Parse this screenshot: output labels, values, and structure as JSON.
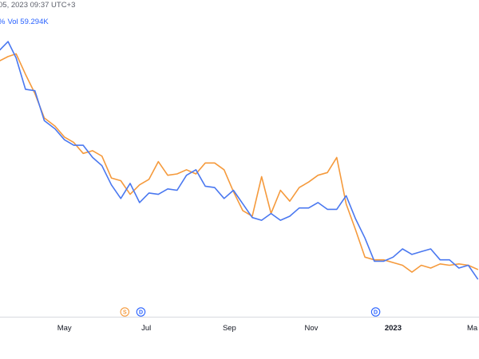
{
  "header": {
    "date_fragment": "05, 2023 09:37 UTC+3",
    "pct_fragment": "%",
    "volume": "Vol 59.294K"
  },
  "colors": {
    "series_orange": "#f59a3c",
    "series_blue": "#4a78f0",
    "axis_line": "#d8dae0",
    "marker_blue": "#2962ff"
  },
  "markers": [
    {
      "symbol": "S",
      "color": "#f59a3c",
      "x_date": "2022-06-15"
    },
    {
      "symbol": "D",
      "color": "#2962ff",
      "x_date": "2022-06-27"
    },
    {
      "symbol": "D",
      "color": "#2962ff",
      "x_date": "2022-12-19"
    }
  ],
  "chart_data": {
    "type": "line",
    "x_labels": [
      {
        "text": "May",
        "date": "2022-05-01"
      },
      {
        "text": "Jul",
        "date": "2022-07-01"
      },
      {
        "text": "Sep",
        "date": "2022-09-01"
      },
      {
        "text": "Nov",
        "date": "2022-11-01"
      },
      {
        "text": "2023",
        "date": "2023-01-01",
        "bold": true
      },
      {
        "text": "Ma",
        "date": "2023-03-01"
      }
    ],
    "x_range": [
      "2022-03-14",
      "2023-03-06"
    ],
    "y_range": [
      0,
      100
    ],
    "grid": false,
    "series": [
      {
        "color": "#f59a3c",
        "points": [
          [
            "2022-03-14",
            88
          ],
          [
            "2022-03-20",
            89.5
          ],
          [
            "2022-03-26",
            90.5
          ],
          [
            "2022-04-02",
            83
          ],
          [
            "2022-04-09",
            76
          ],
          [
            "2022-04-16",
            67
          ],
          [
            "2022-04-24",
            64
          ],
          [
            "2022-05-01",
            60
          ],
          [
            "2022-05-08",
            58
          ],
          [
            "2022-05-15",
            54
          ],
          [
            "2022-05-22",
            55
          ],
          [
            "2022-05-29",
            53
          ],
          [
            "2022-06-05",
            45
          ],
          [
            "2022-06-12",
            44
          ],
          [
            "2022-06-19",
            39
          ],
          [
            "2022-06-26",
            42.5
          ],
          [
            "2022-07-03",
            44.5
          ],
          [
            "2022-07-10",
            51
          ],
          [
            "2022-07-17",
            46
          ],
          [
            "2022-07-24",
            46.5
          ],
          [
            "2022-07-31",
            48
          ],
          [
            "2022-08-07",
            46.5
          ],
          [
            "2022-08-14",
            50.5
          ],
          [
            "2022-08-21",
            50.5
          ],
          [
            "2022-08-28",
            48
          ],
          [
            "2022-09-04",
            40
          ],
          [
            "2022-09-11",
            33
          ],
          [
            "2022-09-18",
            31
          ],
          [
            "2022-09-25",
            45.5
          ],
          [
            "2022-10-02",
            32
          ],
          [
            "2022-10-09",
            40.5
          ],
          [
            "2022-10-16",
            36.5
          ],
          [
            "2022-10-23",
            41.5
          ],
          [
            "2022-10-30",
            43.5
          ],
          [
            "2022-11-06",
            46
          ],
          [
            "2022-11-13",
            47
          ],
          [
            "2022-11-20",
            52.5
          ],
          [
            "2022-11-27",
            35.5
          ],
          [
            "2022-12-04",
            26
          ],
          [
            "2022-12-11",
            16
          ],
          [
            "2022-12-18",
            15
          ],
          [
            "2022-12-25",
            15
          ],
          [
            "2023-01-01",
            14
          ],
          [
            "2023-01-08",
            13
          ],
          [
            "2023-01-15",
            10.5
          ],
          [
            "2023-01-22",
            13
          ],
          [
            "2023-01-29",
            12
          ],
          [
            "2023-02-05",
            13.5
          ],
          [
            "2023-02-12",
            13
          ],
          [
            "2023-02-19",
            13.5
          ],
          [
            "2023-02-26",
            13
          ],
          [
            "2023-03-05",
            11.5
          ]
        ]
      },
      {
        "color": "#4a78f0",
        "points": [
          [
            "2022-03-14",
            92
          ],
          [
            "2022-03-20",
            95
          ],
          [
            "2022-03-26",
            89
          ],
          [
            "2022-04-02",
            77.5
          ],
          [
            "2022-04-09",
            77
          ],
          [
            "2022-04-16",
            66
          ],
          [
            "2022-04-24",
            63
          ],
          [
            "2022-05-01",
            59
          ],
          [
            "2022-05-08",
            57
          ],
          [
            "2022-05-15",
            57
          ],
          [
            "2022-05-22",
            52.5
          ],
          [
            "2022-05-29",
            49.5
          ],
          [
            "2022-06-05",
            42.5
          ],
          [
            "2022-06-12",
            37.5
          ],
          [
            "2022-06-19",
            43
          ],
          [
            "2022-06-26",
            36
          ],
          [
            "2022-07-03",
            39.5
          ],
          [
            "2022-07-10",
            39
          ],
          [
            "2022-07-17",
            41
          ],
          [
            "2022-07-24",
            40.5
          ],
          [
            "2022-07-31",
            46
          ],
          [
            "2022-08-07",
            48
          ],
          [
            "2022-08-14",
            42
          ],
          [
            "2022-08-21",
            41.5
          ],
          [
            "2022-08-28",
            37.5
          ],
          [
            "2022-09-04",
            40.5
          ],
          [
            "2022-09-11",
            35.5
          ],
          [
            "2022-09-18",
            30.5
          ],
          [
            "2022-09-25",
            29.5
          ],
          [
            "2022-10-02",
            32
          ],
          [
            "2022-10-09",
            29.5
          ],
          [
            "2022-10-16",
            31
          ],
          [
            "2022-10-23",
            34
          ],
          [
            "2022-10-30",
            34
          ],
          [
            "2022-11-06",
            36
          ],
          [
            "2022-11-13",
            33.5
          ],
          [
            "2022-11-20",
            33.5
          ],
          [
            "2022-11-27",
            38.5
          ],
          [
            "2022-12-04",
            30
          ],
          [
            "2022-12-11",
            23
          ],
          [
            "2022-12-18",
            14.5
          ],
          [
            "2022-12-25",
            14.5
          ],
          [
            "2023-01-01",
            16
          ],
          [
            "2023-01-08",
            19
          ],
          [
            "2023-01-15",
            17
          ],
          [
            "2023-01-22",
            18
          ],
          [
            "2023-01-29",
            19
          ],
          [
            "2023-02-05",
            15
          ],
          [
            "2023-02-12",
            15
          ],
          [
            "2023-02-19",
            12
          ],
          [
            "2023-02-26",
            13
          ],
          [
            "2023-03-05",
            8
          ]
        ]
      }
    ]
  }
}
